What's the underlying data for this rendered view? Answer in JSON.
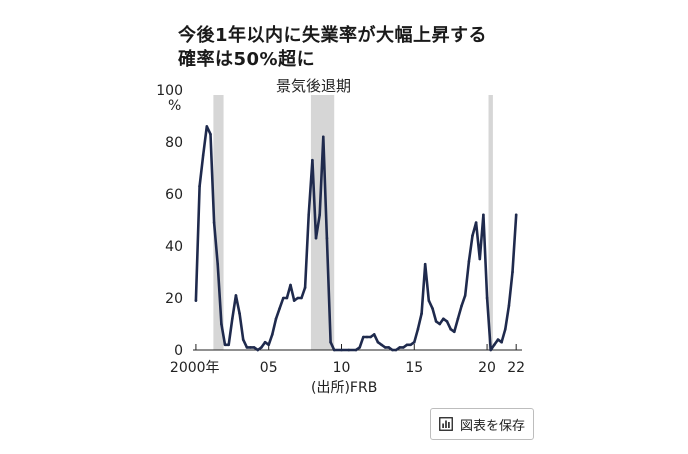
{
  "title_lines": [
    "今後1年以内に失業率が大幅上昇する",
    "確率は50%超に"
  ],
  "source_label": "(出所)FRB",
  "save_button_label": "図表を保存",
  "icons": {
    "save": "bar-chart-icon"
  },
  "colors": {
    "line": "#1f2a4d",
    "recession": "#d6d6d6"
  },
  "chart_data": {
    "type": "line",
    "title": "今後1年以内に失業率が大幅上昇する確率は50%超に",
    "ylabel": "%",
    "xlabel": "",
    "ylim": [
      0,
      100
    ],
    "xlim": [
      1999.8,
      2022.4
    ],
    "y_ticks": [
      "0",
      "20",
      "40",
      "60",
      "80",
      "100"
    ],
    "x_tick_values": [
      2000,
      2005,
      2010,
      2015,
      2020,
      2022
    ],
    "x_tick_labels": [
      "2000年",
      "05",
      "10",
      "15",
      "20",
      "22"
    ],
    "recession_label": "景気後退期",
    "recessions": [
      [
        2001.2,
        2001.9
      ],
      [
        2007.9,
        2009.5
      ],
      [
        2020.1,
        2020.4
      ]
    ],
    "series": [
      {
        "values": [
          [
            2000.0,
            19
          ],
          [
            2000.25,
            63
          ],
          [
            2000.5,
            75
          ],
          [
            2000.75,
            86
          ],
          [
            2001.0,
            83
          ],
          [
            2001.25,
            49
          ],
          [
            2001.5,
            33
          ],
          [
            2001.75,
            10
          ],
          [
            2002.0,
            2
          ],
          [
            2002.25,
            2
          ],
          [
            2002.5,
            12
          ],
          [
            2002.75,
            21
          ],
          [
            2003.0,
            14
          ],
          [
            2003.25,
            4
          ],
          [
            2003.5,
            1
          ],
          [
            2003.75,
            1
          ],
          [
            2004.0,
            1
          ],
          [
            2004.25,
            0
          ],
          [
            2004.5,
            1
          ],
          [
            2004.75,
            3
          ],
          [
            2005.0,
            2
          ],
          [
            2005.25,
            6
          ],
          [
            2005.5,
            12
          ],
          [
            2005.75,
            16
          ],
          [
            2006.0,
            20
          ],
          [
            2006.25,
            20
          ],
          [
            2006.5,
            25
          ],
          [
            2006.75,
            19
          ],
          [
            2007.0,
            20
          ],
          [
            2007.25,
            20
          ],
          [
            2007.5,
            24
          ],
          [
            2007.75,
            52
          ],
          [
            2008.0,
            73
          ],
          [
            2008.25,
            43
          ],
          [
            2008.5,
            52
          ],
          [
            2008.75,
            82
          ],
          [
            2009.0,
            43
          ],
          [
            2009.25,
            3
          ],
          [
            2009.5,
            0
          ],
          [
            2010.0,
            0
          ],
          [
            2010.5,
            0
          ],
          [
            2011.0,
            0
          ],
          [
            2011.25,
            1
          ],
          [
            2011.5,
            5
          ],
          [
            2011.75,
            5
          ],
          [
            2012.0,
            5
          ],
          [
            2012.25,
            6
          ],
          [
            2012.5,
            3
          ],
          [
            2012.75,
            2
          ],
          [
            2013.0,
            1
          ],
          [
            2013.25,
            1
          ],
          [
            2013.5,
            0
          ],
          [
            2013.75,
            0
          ],
          [
            2014.0,
            1
          ],
          [
            2014.25,
            1
          ],
          [
            2014.5,
            2
          ],
          [
            2014.75,
            2
          ],
          [
            2015.0,
            3
          ],
          [
            2015.25,
            8
          ],
          [
            2015.5,
            14
          ],
          [
            2015.75,
            33
          ],
          [
            2016.0,
            19
          ],
          [
            2016.25,
            16
          ],
          [
            2016.5,
            11
          ],
          [
            2016.75,
            10
          ],
          [
            2017.0,
            12
          ],
          [
            2017.25,
            11
          ],
          [
            2017.5,
            8
          ],
          [
            2017.75,
            7
          ],
          [
            2018.0,
            12
          ],
          [
            2018.25,
            17
          ],
          [
            2018.5,
            21
          ],
          [
            2018.75,
            34
          ],
          [
            2019.0,
            44
          ],
          [
            2019.25,
            49
          ],
          [
            2019.5,
            35
          ],
          [
            2019.75,
            52
          ],
          [
            2020.0,
            20
          ],
          [
            2020.25,
            0
          ],
          [
            2020.5,
            2
          ],
          [
            2020.75,
            4
          ],
          [
            2021.0,
            3
          ],
          [
            2021.25,
            8
          ],
          [
            2021.5,
            17
          ],
          [
            2021.75,
            30
          ],
          [
            2022.0,
            52
          ]
        ]
      }
    ]
  }
}
